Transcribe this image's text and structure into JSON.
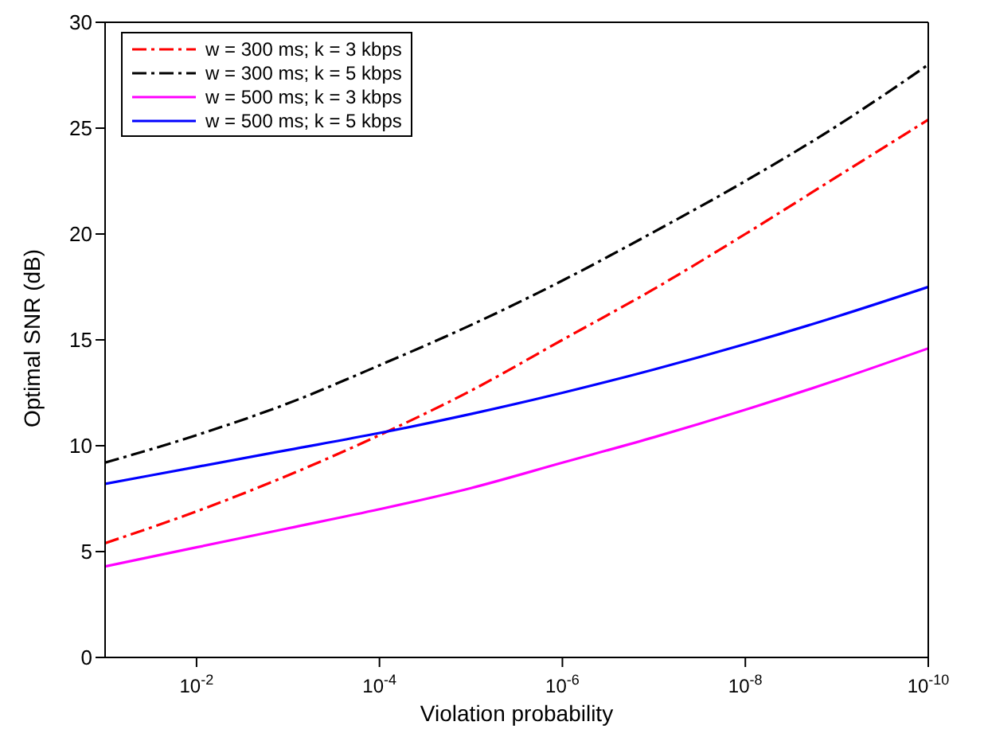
{
  "chart_data": {
    "type": "line",
    "xlabel": "Violation probability",
    "ylabel": "Optimal SNR (dB)",
    "log": "x",
    "xlim": [
      0.1,
      1e-10
    ],
    "ylim": [
      0,
      30
    ],
    "xticks": [
      {
        "value": 0.01,
        "label": "10$^{-2}$"
      },
      {
        "value": 0.0001,
        "label": "10$^{-4}$"
      },
      {
        "value": 1e-06,
        "label": "10$^{-6}$"
      },
      {
        "value": 1e-08,
        "label": "10$^{-8}$"
      },
      {
        "value": 1e-10,
        "label": "10$^{-10}$"
      }
    ],
    "yticks": [
      0,
      5,
      10,
      15,
      20,
      25,
      30
    ],
    "grid": false,
    "legend": "top left",
    "marker": "none",
    "x": [
      0.1,
      0.01,
      0.001,
      0.0001,
      1e-05,
      1e-06,
      1e-07,
      1e-08,
      1e-09,
      1e-10
    ],
    "series": [
      {
        "name": "w = 300 ms; k = 3 kbps",
        "color": "#ff0000",
        "line_style": "dashed",
        "values": [
          5.4,
          6.9,
          8.6,
          10.5,
          12.6,
          15.0,
          17.4,
          20.0,
          22.7,
          25.4
        ]
      },
      {
        "name": "w = 300 ms; k = 5 kbps",
        "color": "#000000",
        "line_style": "dashed",
        "values": [
          9.2,
          10.5,
          12.0,
          13.8,
          15.7,
          17.8,
          20.1,
          22.5,
          25.1,
          28.0
        ]
      },
      {
        "name": "w = 500 ms; k = 3 kbps",
        "color": "#ff00ff",
        "line_style": "solid",
        "values": [
          4.3,
          5.2,
          6.1,
          7.0,
          8.0,
          9.2,
          10.4,
          11.7,
          13.1,
          14.6
        ]
      },
      {
        "name": "w = 500 ms; k = 5 kbps",
        "color": "#0000ff",
        "line_style": "solid",
        "values": [
          8.2,
          9.0,
          9.8,
          10.6,
          11.5,
          12.5,
          13.6,
          14.8,
          16.1,
          17.5
        ]
      }
    ]
  }
}
